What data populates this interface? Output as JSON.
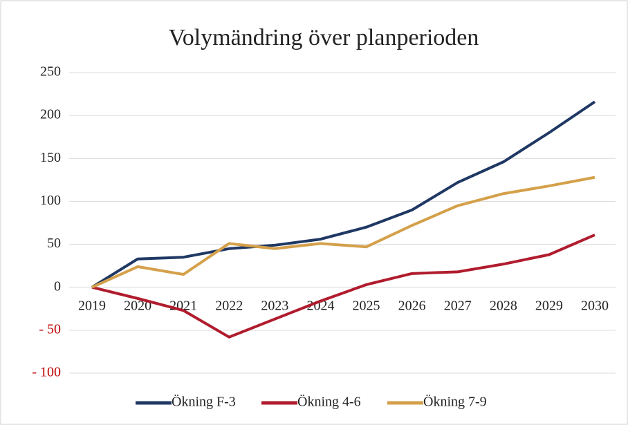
{
  "chart_data": {
    "type": "line",
    "title": "Volymändring över planperioden",
    "categories": [
      "2019",
      "2020",
      "2021",
      "2022",
      "2023",
      "2024",
      "2025",
      "2026",
      "2027",
      "2028",
      "2029",
      "2030"
    ],
    "series": [
      {
        "name": "Ökning F-3",
        "color": "#1f3864",
        "values": [
          0,
          33,
          35,
          45,
          49,
          56,
          70,
          90,
          122,
          146,
          180,
          216
        ]
      },
      {
        "name": "Ökning 4-6",
        "color": "#b01c2e",
        "values": [
          0,
          -13,
          -27,
          -58,
          -37,
          -16,
          3,
          16,
          18,
          27,
          38,
          61
        ]
      },
      {
        "name": "Ökning 7-9",
        "color": "#d4a04a",
        "values": [
          0,
          24,
          15,
          51,
          45,
          51,
          47,
          72,
          95,
          109,
          118,
          128
        ]
      }
    ],
    "ylim": [
      -100,
      250
    ],
    "yticks": [
      {
        "value": -100,
        "label": "- 100"
      },
      {
        "value": -50,
        "label": "- 50"
      },
      0,
      50,
      100,
      150,
      200,
      250
    ],
    "negative_tick_color": "#c00000",
    "grid": true,
    "legend": "bottom"
  }
}
